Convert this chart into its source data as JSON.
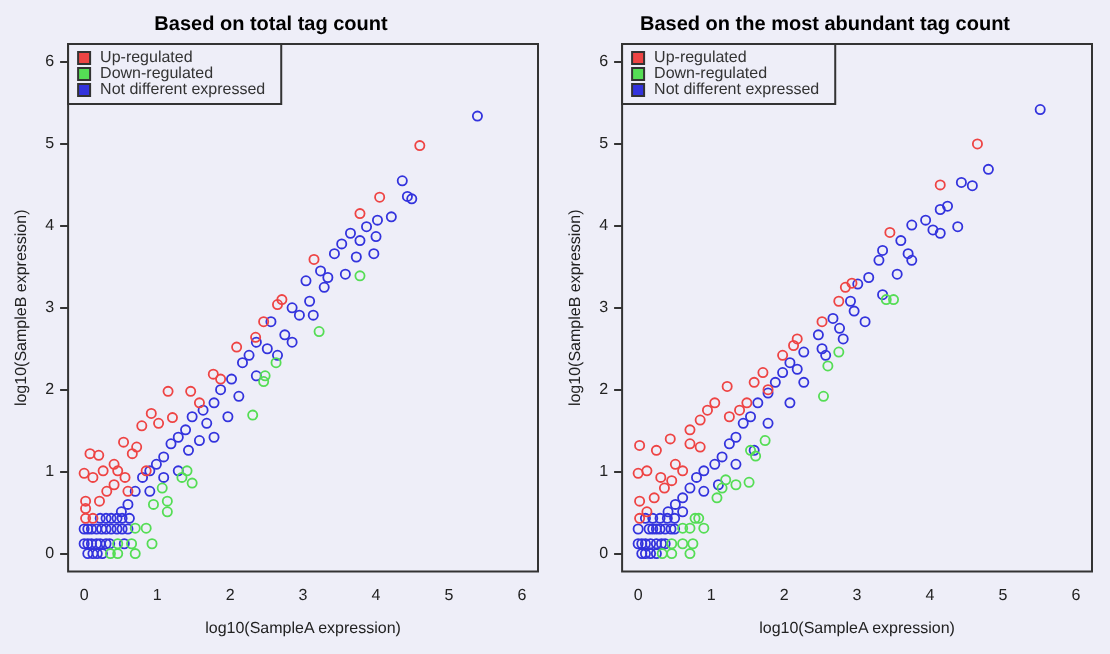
{
  "chart_data": [
    {
      "type": "scatter",
      "title": "Based on total tag count",
      "xlabel": "log10(SampleA expression)",
      "ylabel": "log10(SampleB expression)",
      "xlim": [
        -0.22,
        6.22
      ],
      "ylim": [
        -0.22,
        6.22
      ],
      "xticks": [
        0,
        1,
        2,
        3,
        4,
        5,
        6
      ],
      "yticks": [
        0,
        1,
        2,
        3,
        4,
        5,
        6
      ],
      "marker": "circle",
      "legend": "top left",
      "grid": false,
      "series": [
        {
          "name": "Up-regulated",
          "color": "#ee4444",
          "x": [
            4.6,
            4.05,
            3.78,
            3.15,
            2.71,
            2.65,
            2.46,
            2.35,
            2.09,
            1.77,
            1.15,
            1.46,
            0.92,
            1.02,
            0.79,
            1.21,
            0.54,
            0.72,
            0.66,
            0.41,
            0.26,
            0.08,
            0.2,
            0.0,
            0.12,
            0.41,
            0.31,
            0.21,
            0.02,
            0.02,
            0.12,
            0.02,
            0.56,
            0.46,
            0.6,
            0.85,
            1.58,
            1.87
          ],
          "values": [
            4.98,
            4.35,
            4.15,
            3.59,
            3.1,
            3.04,
            2.83,
            2.64,
            2.52,
            2.19,
            1.98,
            1.98,
            1.71,
            1.59,
            1.56,
            1.66,
            1.36,
            1.3,
            1.22,
            1.09,
            1.01,
            1.22,
            1.2,
            0.98,
            0.93,
            0.84,
            0.76,
            0.64,
            0.64,
            0.55,
            0.43,
            0.43,
            0.93,
            1.01,
            0.76,
            1.01,
            1.84,
            2.13
          ]
        },
        {
          "name": "Down-regulated",
          "color": "#55dd55",
          "x": [
            3.78,
            3.22,
            2.63,
            2.46,
            2.48,
            2.31,
            1.48,
            1.41,
            1.34,
            1.14,
            1.14,
            1.07,
            0.95,
            0.85,
            0.7,
            0.93,
            0.65,
            0.46,
            0.7,
            0.46,
            0.36
          ],
          "values": [
            3.39,
            2.71,
            2.33,
            2.1,
            2.17,
            1.69,
            0.86,
            1.01,
            0.93,
            0.64,
            0.51,
            0.8,
            0.6,
            0.31,
            0.31,
            0.12,
            0.12,
            0.12,
            0.0,
            0.0,
            0.0
          ]
        },
        {
          "name": "Not different expressed",
          "color": "#3333dd",
          "x": [
            5.39,
            4.36,
            4.49,
            4.43,
            4.21,
            4.02,
            3.87,
            4.0,
            3.65,
            3.53,
            3.73,
            3.43,
            3.24,
            3.34,
            3.04,
            3.09,
            2.95,
            2.85,
            2.56,
            2.75,
            2.36,
            2.51,
            2.17,
            2.26,
            2.02,
            1.87,
            1.78,
            1.63,
            1.48,
            1.68,
            1.39,
            1.29,
            1.58,
            1.19,
            1.09,
            0.99,
            0.9,
            0.8,
            0.7,
            0.6,
            0.51,
            0.9,
            1.09,
            1.29,
            1.43,
            1.78,
            1.97,
            2.12,
            2.36,
            2.65,
            2.85,
            3.14,
            3.29,
            3.58,
            3.78,
            3.97,
            0.05,
            0.12,
            0.18,
            0.25,
            0.0,
            0.05,
            0.1,
            0.17,
            0.22,
            0.3,
            0.35,
            0.55,
            0.0,
            0.05,
            0.1,
            0.17,
            0.24,
            0.3,
            0.37,
            0.45,
            0.52,
            0.6,
            0.22,
            0.3,
            0.37,
            0.45,
            0.52,
            0.62
          ],
          "values": [
            5.34,
            4.55,
            4.33,
            4.36,
            4.11,
            4.07,
            3.99,
            3.87,
            3.91,
            3.78,
            3.62,
            3.66,
            3.45,
            3.37,
            3.33,
            3.08,
            2.91,
            3.0,
            2.83,
            2.67,
            2.58,
            2.5,
            2.33,
            2.42,
            2.13,
            2.0,
            1.84,
            1.75,
            1.67,
            1.59,
            1.51,
            1.42,
            1.38,
            1.34,
            1.18,
            1.09,
            1.01,
            0.93,
            0.76,
            0.6,
            0.51,
            0.76,
            0.93,
            1.01,
            1.26,
            1.42,
            1.67,
            1.92,
            2.17,
            2.42,
            2.58,
            2.91,
            3.25,
            3.41,
            3.82,
            3.66,
            0.0,
            0.0,
            0.0,
            0.0,
            0.12,
            0.12,
            0.12,
            0.12,
            0.12,
            0.12,
            0.12,
            0.12,
            0.3,
            0.3,
            0.3,
            0.3,
            0.3,
            0.3,
            0.3,
            0.3,
            0.3,
            0.3,
            0.43,
            0.43,
            0.43,
            0.43,
            0.43,
            0.43
          ]
        }
      ]
    },
    {
      "type": "scatter",
      "title": "Based on the most abundant tag count",
      "xlabel": "log10(SampleA expression)",
      "ylabel": "log10(SampleB expression)",
      "xlim": [
        -0.22,
        6.22
      ],
      "ylim": [
        -0.22,
        6.22
      ],
      "xticks": [
        0,
        1,
        2,
        3,
        4,
        5,
        6
      ],
      "yticks": [
        0,
        1,
        2,
        3,
        4,
        5,
        6
      ],
      "marker": "circle",
      "legend": "top left",
      "grid": false,
      "series": [
        {
          "name": "Up-regulated",
          "color": "#ee4444",
          "x": [
            4.65,
            4.14,
            3.45,
            2.93,
            2.84,
            2.75,
            2.52,
            2.18,
            2.13,
            1.98,
            1.71,
            1.22,
            1.49,
            1.05,
            0.95,
            0.85,
            0.71,
            0.44,
            0.25,
            0.02,
            0.12,
            0.0,
            0.31,
            0.51,
            0.36,
            0.22,
            0.02,
            0.02,
            0.12,
            0.71,
            0.85,
            0.61,
            0.46,
            1.25,
            1.59,
            1.39,
            1.78
          ],
          "values": [
            5.0,
            4.5,
            3.92,
            3.3,
            3.25,
            3.08,
            2.83,
            2.62,
            2.54,
            2.42,
            2.21,
            2.04,
            1.84,
            1.84,
            1.75,
            1.63,
            1.51,
            1.4,
            1.26,
            1.32,
            1.01,
            0.98,
            0.93,
            1.09,
            0.8,
            0.68,
            0.64,
            0.43,
            0.51,
            1.34,
            1.3,
            1.01,
            0.89,
            1.67,
            2.09,
            1.75,
            2.0
          ]
        },
        {
          "name": "Down-regulated",
          "color": "#55dd55",
          "x": [
            3.5,
            3.4,
            2.75,
            2.6,
            2.54,
            1.74,
            1.61,
            1.54,
            1.52,
            1.34,
            1.2,
            1.15,
            1.08,
            0.9,
            0.78,
            0.83,
            0.71,
            0.61,
            0.75,
            0.61,
            0.46,
            0.71,
            0.46,
            0.33
          ],
          "values": [
            3.1,
            3.1,
            2.46,
            2.29,
            1.92,
            1.38,
            1.19,
            1.26,
            0.87,
            0.84,
            0.9,
            0.8,
            0.68,
            0.31,
            0.43,
            0.43,
            0.31,
            0.31,
            0.12,
            0.12,
            0.12,
            0.0,
            0.0,
            0.0
          ]
        },
        {
          "name": "Not different expressed",
          "color": "#3333dd",
          "x": [
            5.51,
            4.8,
            4.58,
            4.43,
            4.24,
            4.14,
            3.94,
            4.04,
            3.75,
            3.6,
            3.7,
            3.35,
            3.3,
            3.16,
            3.01,
            2.91,
            2.96,
            2.67,
            2.76,
            2.47,
            2.52,
            2.27,
            2.08,
            2.18,
            1.98,
            1.78,
            1.88,
            1.64,
            1.54,
            1.44,
            1.34,
            1.25,
            1.15,
            1.05,
            0.9,
            0.8,
            0.71,
            0.61,
            0.51,
            0.41,
            0.61,
            0.9,
            1.1,
            1.34,
            1.59,
            1.78,
            2.08,
            2.27,
            2.57,
            2.81,
            3.11,
            3.35,
            3.55,
            3.75,
            4.14,
            4.38,
            0.05,
            0.1,
            0.17,
            0.25,
            0.0,
            0.05,
            0.1,
            0.17,
            0.25,
            0.32,
            0.37,
            0.0,
            0.15,
            0.2,
            0.25,
            0.3,
            0.37,
            0.45,
            0.5,
            0.1,
            0.2,
            0.3,
            0.4,
            0.5
          ],
          "values": [
            5.42,
            4.69,
            4.49,
            4.53,
            4.24,
            4.2,
            4.07,
            3.95,
            4.01,
            3.82,
            3.66,
            3.7,
            3.58,
            3.37,
            3.29,
            3.08,
            2.96,
            2.87,
            2.75,
            2.67,
            2.5,
            2.46,
            2.33,
            2.25,
            2.21,
            1.96,
            2.09,
            1.84,
            1.67,
            1.59,
            1.42,
            1.34,
            1.18,
            1.09,
            1.01,
            0.93,
            0.8,
            0.68,
            0.6,
            0.51,
            0.51,
            0.76,
            0.84,
            1.09,
            1.26,
            1.59,
            1.84,
            2.09,
            2.42,
            2.62,
            2.83,
            3.16,
            3.41,
            3.58,
            3.91,
            3.99,
            0.0,
            0.0,
            0.0,
            0.0,
            0.12,
            0.12,
            0.12,
            0.12,
            0.12,
            0.12,
            0.12,
            0.3,
            0.3,
            0.3,
            0.3,
            0.3,
            0.3,
            0.3,
            0.3,
            0.43,
            0.43,
            0.43,
            0.43,
            0.43
          ]
        }
      ]
    }
  ]
}
